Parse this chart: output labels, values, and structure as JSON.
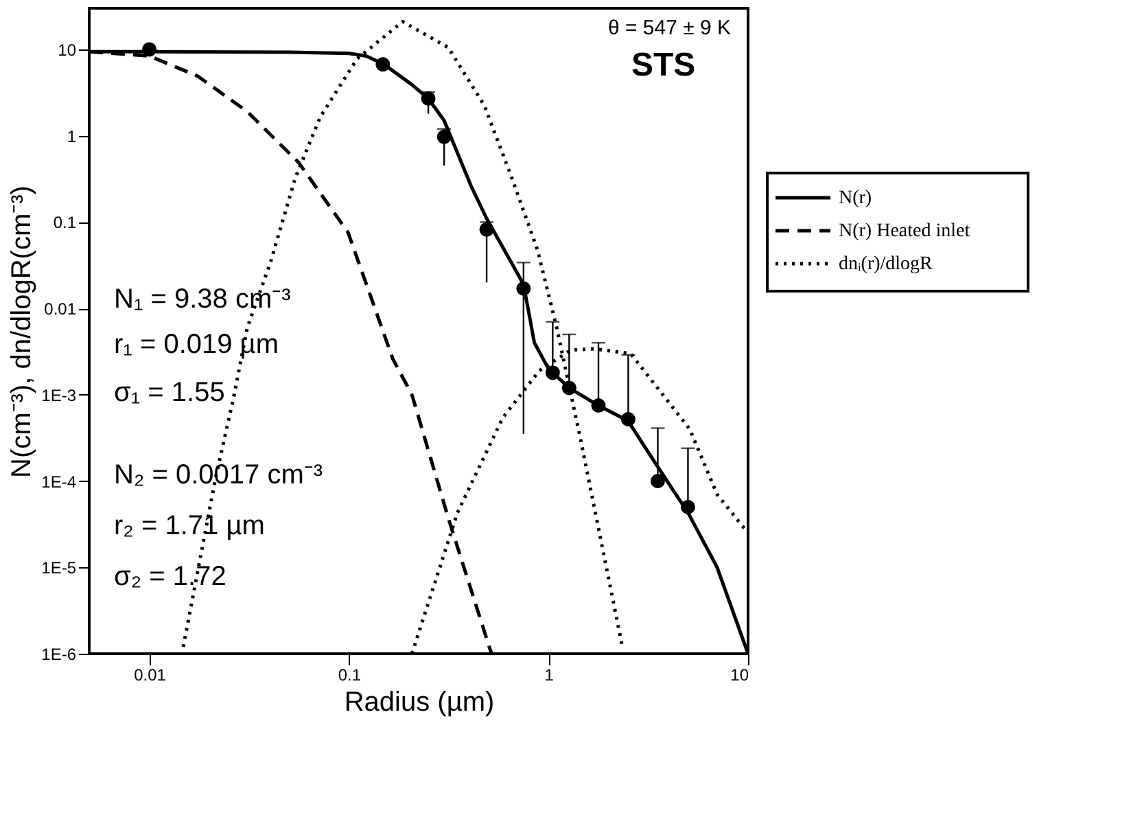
{
  "chart_data": {
    "type": "line",
    "xlabel": "Radius (µm)",
    "ylabel": "N(cm⁻³), dn/dlogR(cm⁻³)",
    "log": "xy",
    "grid": false,
    "legend": "right",
    "xlim": [
      0.005,
      10
    ],
    "ylim": [
      1e-06,
      30
    ],
    "xticks": [
      0.01,
      0.1,
      1,
      10
    ],
    "yticks": [
      {
        "value": 1e-06,
        "label": "1E-6"
      },
      {
        "value": 1e-05,
        "label": "1E-5"
      },
      {
        "value": 0.0001,
        "label": "1E-4"
      },
      {
        "value": 0.001,
        "label": "1E-3"
      },
      0.01,
      0.1,
      1,
      10
    ],
    "annotations": [
      "θ = 547 ± 9 K",
      "STS",
      "N₁ = 9.38 cm⁻³",
      "r₁ = 0.019 µm",
      "σ₁ = 1.55",
      "N₂ = 0.0017 cm⁻³",
      "r₂ = 1.71 µm",
      "σ₂ = 1.72"
    ],
    "series": [
      {
        "name": "N(r)",
        "line_style": "solid",
        "color": "#000000",
        "x": [
          0.005,
          0.01,
          0.05,
          0.1,
          0.122,
          0.15,
          0.207,
          0.25,
          0.3,
          0.41,
          0.49,
          0.75,
          0.85,
          1.0,
          1.27,
          1.78,
          2.5,
          3.5,
          5.0,
          7.0,
          9.6,
          10
        ],
        "values": [
          9.4,
          9.4,
          9.3,
          9.0,
          8.4,
          6.7,
          3.9,
          2.7,
          1.5,
          0.26,
          0.11,
          0.019,
          0.004,
          0.002,
          0.0012,
          0.00075,
          0.0005,
          0.00015,
          4.3e-05,
          1e-05,
          1.3e-06,
          1e-06
        ]
      },
      {
        "name": "N(r) Heated inlet",
        "line_style": "dashed",
        "color": "#000000",
        "x": [
          0.005,
          0.01,
          0.0175,
          0.031,
          0.056,
          0.099,
          0.166,
          0.207,
          0.315,
          0.505,
          0.52
        ],
        "values": [
          9.4,
          8.4,
          4.9,
          1.9,
          0.49,
          0.076,
          0.0026,
          0.001,
          3.7e-05,
          1.2e-06,
          1e-06
        ]
      },
      {
        "name": "dnᵢ(r)/dlogR",
        "line_style": "dotted",
        "color": "#000000",
        "x": [
          0.0148,
          0.0215,
          0.0263,
          0.031,
          0.0406,
          0.054,
          0.072,
          0.11,
          0.186,
          0.315,
          0.477,
          0.66,
          0.88,
          1.1,
          1.45,
          2.33
        ],
        "values": [
          1.2e-06,
          0.00011,
          0.00087,
          0.006,
          0.035,
          0.33,
          1.66,
          7.8,
          21,
          10.5,
          2.25,
          0.31,
          0.048,
          0.006,
          0.0003,
          1.3e-06
        ]
      },
      {
        "line_style": "dotted",
        "color": "#000000",
        "x": [
          0.207,
          0.35,
          0.59,
          0.9,
          1.3,
          1.7,
          2.58,
          5.1,
          7.0,
          10
        ],
        "values": [
          1e-06,
          4.3e-05,
          0.00054,
          0.0019,
          0.0033,
          0.0034,
          0.003,
          0.0004,
          7e-05,
          2.5e-05
        ]
      },
      {
        "type": "scatter",
        "marker": "circle",
        "color": "#000000",
        "x": [
          0.01,
          0.148,
          0.25,
          0.3,
          0.49,
          0.75,
          1.05,
          1.27,
          1.78,
          2.51,
          3.53,
          5.0
        ],
        "values": [
          10,
          6.7,
          2.7,
          0.97,
          0.082,
          0.017,
          0.0018,
          0.0012,
          0.00075,
          0.00052,
          0.0001,
          5e-05
        ],
        "errors": [
          null,
          null,
          [
            1.8,
            3.2
          ],
          [
            0.45,
            1.2
          ],
          [
            0.02,
            0.1
          ],
          [
            0.00035,
            0.034
          ],
          [
            0.0018,
            0.007
          ],
          [
            0.0012,
            0.005
          ],
          [
            0.00075,
            0.004
          ],
          [
            0.00052,
            0.0029
          ],
          [
            0.0001,
            0.00041
          ],
          [
            5e-05,
            0.00024
          ]
        ]
      }
    ]
  }
}
